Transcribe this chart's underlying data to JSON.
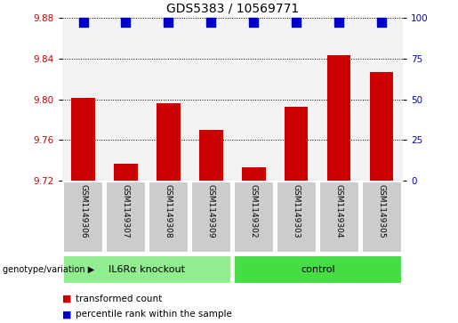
{
  "title": "GDS5383 / 10569771",
  "samples": [
    "GSM1149306",
    "GSM1149307",
    "GSM1149308",
    "GSM1149309",
    "GSM1149302",
    "GSM1149303",
    "GSM1149304",
    "GSM1149305"
  ],
  "transformed_counts": [
    9.801,
    9.737,
    9.796,
    9.77,
    9.733,
    9.793,
    9.843,
    9.827
  ],
  "percentile_ranks": [
    97,
    97,
    97,
    97,
    97,
    97,
    97,
    97
  ],
  "ylim_left": [
    9.72,
    9.88
  ],
  "ylim_right": [
    0,
    100
  ],
  "yticks_left": [
    9.72,
    9.76,
    9.8,
    9.84,
    9.88
  ],
  "yticks_right": [
    0,
    25,
    50,
    75,
    100
  ],
  "groups": [
    {
      "label": "IL6Rα knockout",
      "indices": [
        0,
        1,
        2,
        3
      ],
      "color": "#90EE90"
    },
    {
      "label": "control",
      "indices": [
        4,
        5,
        6,
        7
      ],
      "color": "#44DD44"
    }
  ],
  "bar_color": "#CC0000",
  "dot_color": "#0000CC",
  "bar_width": 0.55,
  "dot_size": 55,
  "grid_color": "black",
  "grid_style": "dotted",
  "background_plot": "#f2f2f2",
  "background_xtick": "#cccccc",
  "legend_items": [
    {
      "label": "transformed count",
      "color": "#CC0000"
    },
    {
      "label": "percentile rank within the sample",
      "color": "#0000CC"
    }
  ],
  "xlabel_annotation": "genotype/variation",
  "title_fontsize": 10,
  "tick_fontsize": 7.5,
  "label_fontsize": 8
}
